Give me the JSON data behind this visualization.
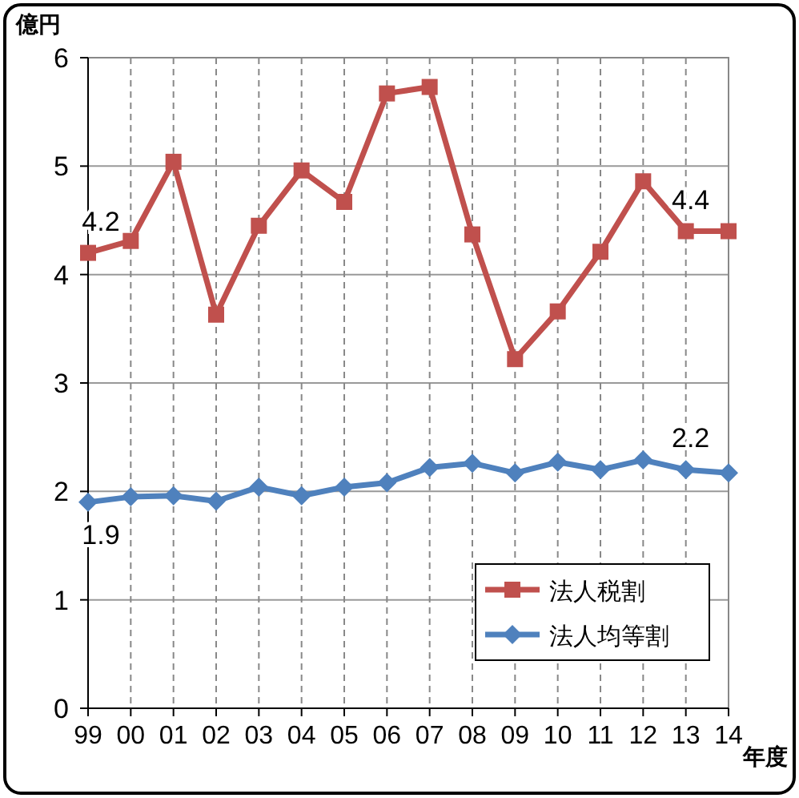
{
  "chart_data": {
    "type": "line",
    "ylabel": "億円",
    "xlabel": "年度",
    "categories": [
      "99",
      "00",
      "01",
      "02",
      "03",
      "04",
      "05",
      "06",
      "07",
      "08",
      "09",
      "10",
      "11",
      "12",
      "13",
      "14"
    ],
    "series": [
      {
        "name": "法人税割",
        "color": "#c0504d",
        "marker": "square",
        "values": [
          4.2,
          4.31,
          5.04,
          3.63,
          4.45,
          4.96,
          4.67,
          5.67,
          5.73,
          4.37,
          3.22,
          3.66,
          4.21,
          4.86,
          4.4,
          4.4
        ],
        "value_labels": [
          "4.2",
          null,
          null,
          null,
          null,
          null,
          null,
          null,
          null,
          null,
          null,
          null,
          null,
          null,
          "4.4",
          null
        ]
      },
      {
        "name": "法人均等割",
        "color": "#4f81bd",
        "marker": "diamond",
        "values": [
          1.9,
          1.95,
          1.96,
          1.91,
          2.04,
          1.96,
          2.04,
          2.08,
          2.22,
          2.26,
          2.17,
          2.27,
          2.2,
          2.29,
          2.2,
          2.17
        ],
        "value_labels": [
          "1.9",
          null,
          null,
          null,
          null,
          null,
          null,
          null,
          null,
          null,
          null,
          null,
          null,
          null,
          "2.2",
          null
        ]
      }
    ],
    "ylim": [
      0,
      6
    ],
    "yticks": [
      0,
      1,
      2,
      3,
      4,
      5,
      6
    ],
    "grid": true,
    "legend": "bottom right",
    "line_style": "solid"
  }
}
